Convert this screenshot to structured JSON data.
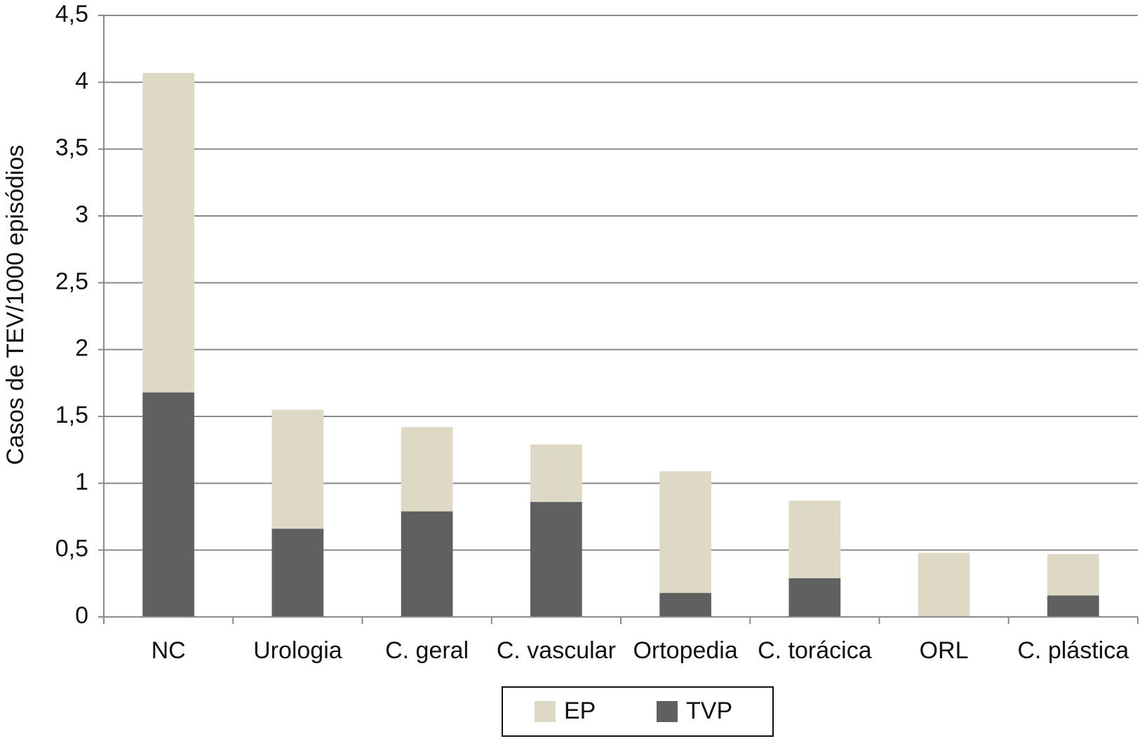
{
  "chart_data": {
    "type": "stacked_bar",
    "y_label": "Casos de TEV/1000 episódios",
    "categories": [
      "NC",
      "Urologia",
      "C. geral",
      "C. vascular",
      "Ortopedia",
      "C. torácica",
      "ORL",
      "C. plástica"
    ],
    "series": [
      {
        "name": "EP",
        "color": "#ddd9c4",
        "values": [
          2.39,
          0.89,
          0.63,
          0.43,
          0.91,
          0.58,
          0.48,
          0.31
        ]
      },
      {
        "name": "TVP",
        "color": "#606060",
        "values": [
          1.68,
          0.66,
          0.79,
          0.86,
          0.18,
          0.29,
          0,
          0.16
        ]
      }
    ],
    "ylim": [
      0,
      4.5
    ],
    "yticks": [
      0,
      {
        "value": 0.5,
        "label": "0,5"
      },
      1,
      {
        "value": 1.5,
        "label": "1,5"
      },
      2,
      {
        "value": 2.5,
        "label": "2,5"
      },
      3,
      {
        "value": 3.5,
        "label": "3,5"
      },
      4,
      {
        "value": 4.5,
        "label": "4,5"
      }
    ],
    "grid": true,
    "legend": "bottom"
  }
}
